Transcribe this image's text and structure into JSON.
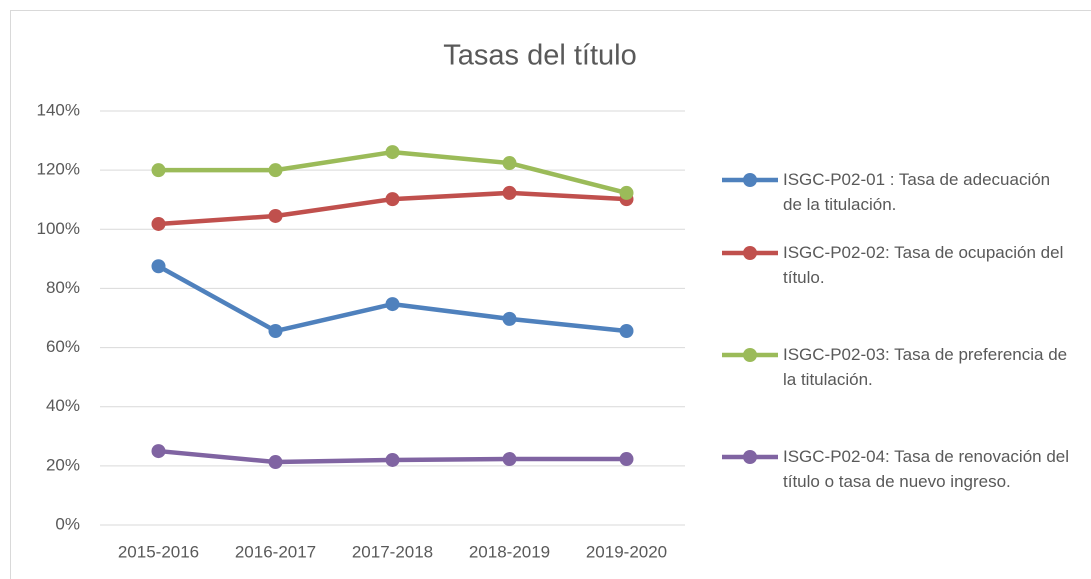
{
  "chart_data": {
    "type": "line",
    "title": "Tasas del título",
    "categories": [
      "2015-2016",
      "2016-2017",
      "2017-2018",
      "2018-2019",
      "2019-2020"
    ],
    "series": [
      {
        "name": "ISGC-P02-01 : Tasa de adecuación de la titulación.",
        "color": "#4f81bd",
        "values": [
          87.5,
          65.6,
          74.7,
          69.7,
          65.6
        ]
      },
      {
        "name": "ISGC-P02-02: Tasa de ocupación del título.",
        "color": "#c0504d",
        "values": [
          101.8,
          104.5,
          110.2,
          112.3,
          110.2
        ]
      },
      {
        "name": "ISGC-P02-03: Tasa de preferencia de la titulación.",
        "color": "#9bbb59",
        "values": [
          120,
          120,
          126.1,
          122.4,
          112.3
        ]
      },
      {
        "name": "ISGC-P02-04: Tasa de renovación del título o tasa de nuevo ingreso.",
        "color": "#8064a2",
        "values": [
          25,
          21.3,
          22,
          22.3,
          22.3
        ]
      }
    ],
    "ylim": [
      0,
      140
    ],
    "yticks": [
      {
        "value": 0,
        "label": "0%"
      },
      {
        "value": 20,
        "label": "20%"
      },
      {
        "value": 40,
        "label": "40%"
      },
      {
        "value": 60,
        "label": "60%"
      },
      {
        "value": 80,
        "label": "80%"
      },
      {
        "value": 100,
        "label": "100%"
      },
      {
        "value": 120,
        "label": "120%"
      },
      {
        "value": 140,
        "label": "140%"
      }
    ],
    "grid": true,
    "legend": "right"
  }
}
